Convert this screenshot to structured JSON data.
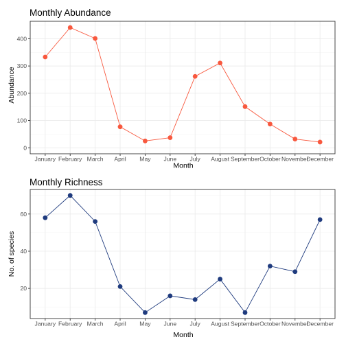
{
  "chart_data": [
    {
      "type": "line",
      "title": "Monthly Abundance",
      "xlabel": "Month",
      "ylabel": "Abundance",
      "categories": [
        "January",
        "February",
        "March",
        "April",
        "May",
        "June",
        "July",
        "August",
        "September",
        "October",
        "November",
        "December"
      ],
      "values": [
        333,
        441,
        401,
        77,
        25,
        37,
        262,
        311,
        151,
        87,
        32,
        21
      ],
      "yticks": [
        0,
        100,
        200,
        300,
        400
      ],
      "ylim": [
        -22,
        464
      ],
      "color": "#f8583e",
      "grid": true
    },
    {
      "type": "line",
      "title": "Monthly Richness",
      "xlabel": "Month",
      "ylabel": "No. of species",
      "categories": [
        "January",
        "February",
        "March",
        "April",
        "May",
        "June",
        "July",
        "August",
        "September",
        "October",
        "November",
        "December"
      ],
      "values": [
        58,
        70,
        56,
        21,
        7,
        16,
        14,
        25,
        7,
        32,
        29,
        57
      ],
      "yticks": [
        20,
        40,
        60
      ],
      "ylim": [
        3.8,
        73.2
      ],
      "color": "#1f3b7e",
      "grid": true
    }
  ]
}
